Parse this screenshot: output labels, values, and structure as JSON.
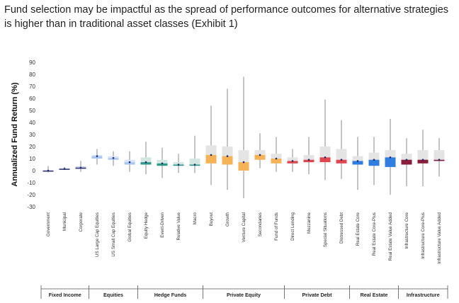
{
  "title": "Fund selection may be impactful as the spread of performance outcomes for alternative strategies is higher than in traditional asset classes (Exhibit 1)",
  "chart_data": {
    "type": "boxplot",
    "ylabel": "Annualized Fund Return (%)",
    "ylim": [
      -30,
      90
    ],
    "yticks": [
      90,
      80,
      70,
      60,
      50,
      40,
      30,
      20,
      10,
      0,
      -10,
      -20,
      -30
    ],
    "groups": [
      {
        "name": "Fixed Income",
        "color": "#3a3f7a",
        "categories": [
          {
            "name": "Government",
            "min": -1.5,
            "q1": -0.5,
            "median": 0,
            "q3": 0.5,
            "max": 4
          },
          {
            "name": "Municipal",
            "min": 0.5,
            "q1": 1,
            "median": 1.5,
            "q3": 2,
            "max": 3
          },
          {
            "name": "Corporate",
            "min": -1,
            "q1": 1.5,
            "median": 2.5,
            "q3": 3.5,
            "max": 8
          }
        ]
      },
      {
        "name": "Equities",
        "color": "#a9c6f0",
        "categories": [
          {
            "name": "US Large Cap Equities",
            "min": 5,
            "q1": 10,
            "median": 12,
            "q3": 13,
            "max": 18
          },
          {
            "name": "US Small Cap Equities",
            "min": 4,
            "q1": 9,
            "median": 10.5,
            "q3": 12,
            "max": 16
          },
          {
            "name": "Global Equities",
            "min": -1,
            "q1": 5,
            "median": 7,
            "q3": 9,
            "max": 16
          }
        ]
      },
      {
        "name": "Hedge Funds",
        "color": "#2e9a8a",
        "categories": [
          {
            "name": "Equity Hedge",
            "min": -3,
            "q1": 5,
            "median": 7,
            "q3": 11,
            "max": 24
          },
          {
            "name": "Event-Driven",
            "min": -6,
            "q1": 4,
            "median": 6,
            "q3": 9,
            "max": 19
          },
          {
            "name": "Relative Value",
            "min": -2,
            "q1": 4,
            "median": 5,
            "q3": 7,
            "max": 14
          },
          {
            "name": "Macro",
            "min": -2,
            "q1": 4,
            "median": 5,
            "q3": 10,
            "max": 29
          }
        ]
      },
      {
        "name": "Private Equity",
        "color": "#f5b256",
        "categories": [
          {
            "name": "Buyout",
            "min": -12,
            "q1": 6,
            "median": 13,
            "q3": 21,
            "max": 54
          },
          {
            "name": "Growth",
            "min": -16,
            "q1": 5,
            "median": 12,
            "q3": 20,
            "max": 68
          },
          {
            "name": "Venture Capital",
            "min": -23,
            "q1": 0,
            "median": 7,
            "q3": 17,
            "max": 78
          },
          {
            "name": "Secondaries",
            "min": 2,
            "q1": 9,
            "median": 13,
            "q3": 17,
            "max": 31
          },
          {
            "name": "Fund of Funds",
            "min": -1,
            "q1": 6,
            "median": 10,
            "q3": 14,
            "max": 28
          }
        ]
      },
      {
        "name": "Private Debt",
        "color": "#e0464d",
        "categories": [
          {
            "name": "Direct Lending",
            "min": -1,
            "q1": 6,
            "median": 8,
            "q3": 11,
            "max": 18
          },
          {
            "name": "Mezzanine",
            "min": -3,
            "q1": 7,
            "median": 9,
            "q3": 13,
            "max": 28
          },
          {
            "name": "Special Situations",
            "min": -8,
            "q1": 7,
            "median": 11,
            "q3": 20,
            "max": 59
          },
          {
            "name": "Distressed Debt",
            "min": -7,
            "q1": 6,
            "median": 9,
            "q3": 18,
            "max": 42
          }
        ]
      },
      {
        "name": "Real Estate",
        "color": "#2f7de1",
        "categories": [
          {
            "name": "Real Estate Core",
            "min": -16,
            "q1": 5,
            "median": 8,
            "q3": 12,
            "max": 28
          },
          {
            "name": "Real Estate Core-Plus",
            "min": -12,
            "q1": 4,
            "median": 9,
            "q3": 15,
            "max": 28
          },
          {
            "name": "Real Estate Value Added",
            "min": -20,
            "q1": 3,
            "median": 11,
            "q3": 17,
            "max": 43
          }
        ]
      },
      {
        "name": "Infrastructure",
        "color": "#8a1c3c",
        "categories": [
          {
            "name": "Infrastructure Core",
            "min": -13,
            "q1": 5,
            "median": 9,
            "q3": 14,
            "max": 27
          },
          {
            "name": "Infrastructure Core-Plus",
            "min": -13,
            "q1": 6,
            "median": 9,
            "q3": 17,
            "max": 34
          },
          {
            "name": "Infrastructure Value Added",
            "min": -5,
            "q1": 8,
            "median": 9,
            "q3": 17,
            "max": 27
          }
        ]
      }
    ]
  }
}
